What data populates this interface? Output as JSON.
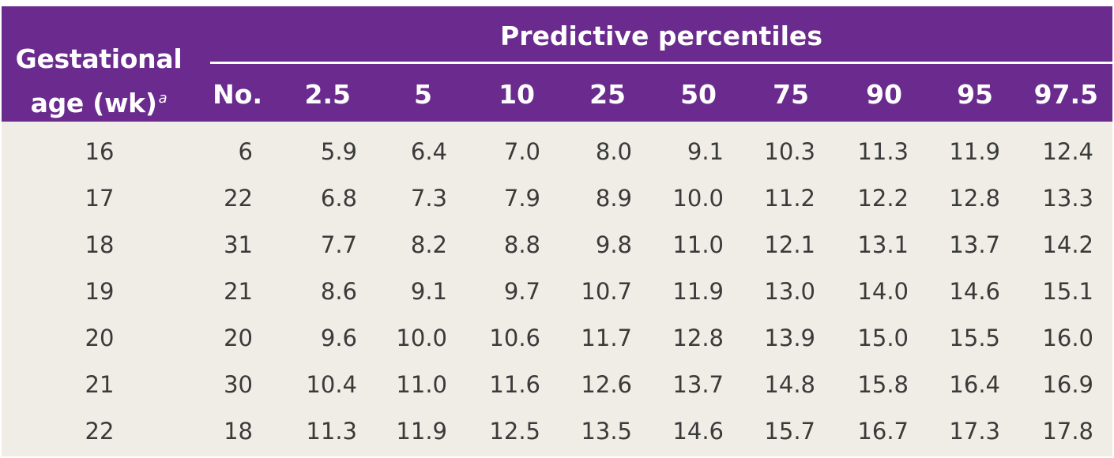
{
  "header": {
    "ga_label_line1": "Gestational",
    "ga_label_line2": "age (wk)",
    "ga_footnote": "a",
    "group_title": "Predictive percentiles",
    "columns": [
      "No.",
      "2.5",
      "5",
      "10",
      "25",
      "50",
      "75",
      "90",
      "95",
      "97.5"
    ]
  },
  "rows": [
    [
      "16",
      "6",
      "5.9",
      "6.4",
      "7.0",
      "8.0",
      "9.1",
      "10.3",
      "11.3",
      "11.9",
      "12.4"
    ],
    [
      "17",
      "22",
      "6.8",
      "7.3",
      "7.9",
      "8.9",
      "10.0",
      "11.2",
      "12.2",
      "12.8",
      "13.3"
    ],
    [
      "18",
      "31",
      "7.7",
      "8.2",
      "8.8",
      "9.8",
      "11.0",
      "12.1",
      "13.1",
      "13.7",
      "14.2"
    ],
    [
      "19",
      "21",
      "8.6",
      "9.1",
      "9.7",
      "10.7",
      "11.9",
      "13.0",
      "14.0",
      "14.6",
      "15.1"
    ],
    [
      "20",
      "20",
      "9.6",
      "10.0",
      "10.6",
      "11.7",
      "12.8",
      "13.9",
      "15.0",
      "15.5",
      "16.0"
    ],
    [
      "21",
      "30",
      "10.4",
      "11.0",
      "11.6",
      "12.6",
      "13.7",
      "14.8",
      "15.8",
      "16.4",
      "16.9"
    ],
    [
      "22",
      "18",
      "11.3",
      "11.9",
      "12.5",
      "13.5",
      "14.6",
      "15.7",
      "16.7",
      "17.3",
      "17.8"
    ]
  ]
}
